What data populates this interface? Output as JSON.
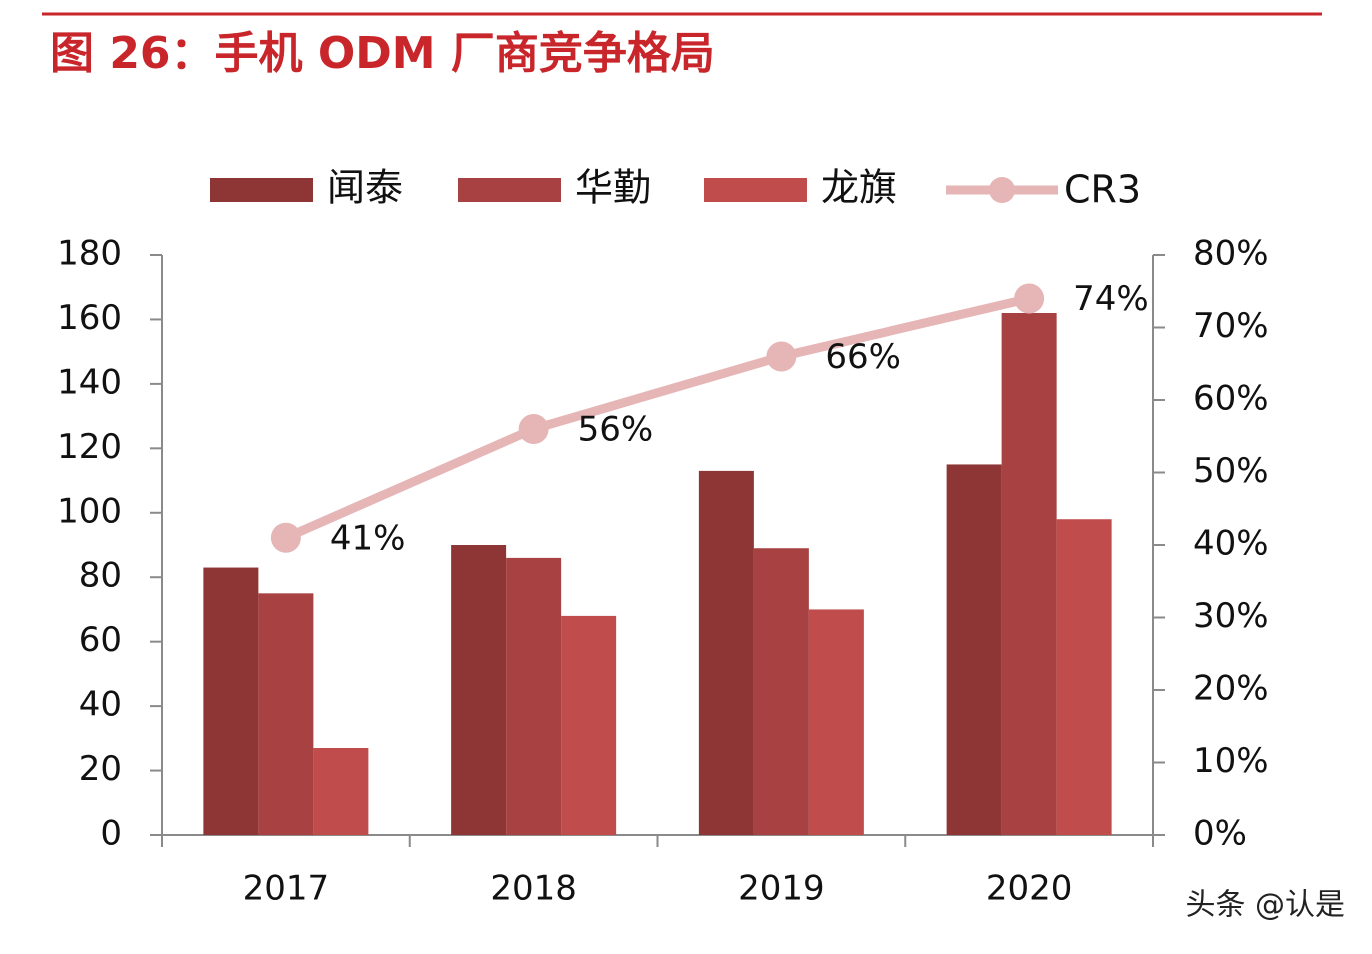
{
  "chart_data": {
    "type": "bar",
    "title": "图 26：手机 ODM 厂商竞争格局",
    "categories": [
      "2017",
      "2018",
      "2019",
      "2020"
    ],
    "series": [
      {
        "name": "闻泰",
        "type": "bar",
        "color": "#8e3535",
        "values": [
          83,
          90,
          113,
          115
        ]
      },
      {
        "name": "华勤",
        "type": "bar",
        "color": "#a84242",
        "values": [
          75,
          86,
          89,
          162
        ]
      },
      {
        "name": "龙旗",
        "type": "bar",
        "color": "#c04c4c",
        "values": [
          27,
          68,
          70,
          98
        ]
      },
      {
        "name": "CR3",
        "type": "line",
        "axis": "y2",
        "color": "#e6b5b5",
        "values": [
          41,
          56,
          66,
          74
        ],
        "value_labels": [
          "41%",
          "56%",
          "66%",
          "74%"
        ]
      }
    ],
    "ylim": [
      0,
      180
    ],
    "yticks": [
      0,
      20,
      40,
      60,
      80,
      100,
      120,
      140,
      160,
      180
    ],
    "y2lim": [
      0,
      80
    ],
    "y2ticks": [
      {
        "value": 0,
        "label": "0%"
      },
      {
        "value": 10,
        "label": "10%"
      },
      {
        "value": 20,
        "label": "20%"
      },
      {
        "value": 30,
        "label": "30%"
      },
      {
        "value": 40,
        "label": "40%"
      },
      {
        "value": 50,
        "label": "50%"
      },
      {
        "value": 60,
        "label": "60%"
      },
      {
        "value": 70,
        "label": "70%"
      },
      {
        "value": 80,
        "label": "80%"
      }
    ],
    "legend": "top",
    "watermark": "头条 @认是"
  }
}
